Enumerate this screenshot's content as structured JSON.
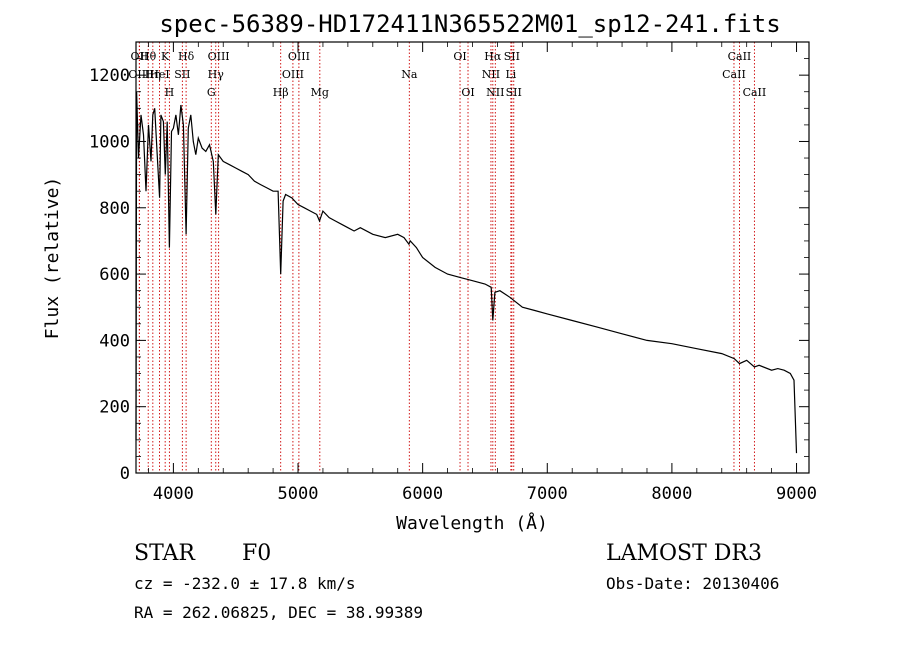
{
  "chart_data": {
    "type": "line",
    "title": "spec-56389-HD172411N365522M01_sp12-241.fits",
    "xlabel": "Wavelength (Å)",
    "ylabel": "Flux (relative)",
    "xlim": [
      3700,
      9100
    ],
    "ylim": [
      0,
      1300
    ],
    "x_ticks": [
      4000,
      5000,
      6000,
      7000,
      8000,
      9000
    ],
    "y_ticks": [
      0,
      200,
      400,
      600,
      800,
      1000,
      1200
    ],
    "series": [
      {
        "name": "flux",
        "x": [
          3700,
          3705,
          3720,
          3740,
          3760,
          3780,
          3800,
          3820,
          3835,
          3850,
          3870,
          3889,
          3900,
          3920,
          3935,
          3950,
          3968,
          3985,
          4000,
          4020,
          4040,
          4060,
          4080,
          4102,
          4120,
          4140,
          4160,
          4180,
          4200,
          4230,
          4260,
          4290,
          4320,
          4340,
          4360,
          4400,
          4450,
          4500,
          4550,
          4600,
          4650,
          4700,
          4750,
          4800,
          4840,
          4861,
          4880,
          4900,
          4950,
          5000,
          5050,
          5100,
          5150,
          5172,
          5200,
          5250,
          5300,
          5350,
          5400,
          5450,
          5500,
          5600,
          5700,
          5800,
          5850,
          5890,
          5900,
          5950,
          6000,
          6100,
          6200,
          6300,
          6400,
          6500,
          6550,
          6563,
          6580,
          6620,
          6700,
          6800,
          6900,
          7000,
          7200,
          7400,
          7600,
          7800,
          8000,
          8200,
          8400,
          8500,
          8542,
          8600,
          8662,
          8700,
          8800,
          8850,
          8900,
          8950,
          8980,
          9000
        ],
        "y": [
          100,
          1150,
          950,
          1080,
          1020,
          850,
          1050,
          940,
          1080,
          1100,
          960,
          830,
          1080,
          1060,
          900,
          1060,
          680,
          1030,
          1040,
          1080,
          1020,
          1110,
          1050,
          720,
          1040,
          1080,
          1000,
          960,
          1010,
          980,
          970,
          990,
          940,
          780,
          960,
          940,
          930,
          920,
          910,
          900,
          880,
          870,
          860,
          850,
          850,
          600,
          820,
          840,
          830,
          810,
          800,
          790,
          780,
          760,
          790,
          770,
          760,
          750,
          740,
          730,
          740,
          720,
          710,
          720,
          710,
          690,
          700,
          680,
          650,
          620,
          600,
          590,
          580,
          570,
          560,
          460,
          545,
          550,
          530,
          500,
          490,
          480,
          460,
          440,
          420,
          400,
          390,
          375,
          360,
          345,
          330,
          340,
          320,
          325,
          310,
          315,
          310,
          300,
          280,
          60
        ]
      }
    ],
    "spectral_lines": [
      {
        "name": "Hθ",
        "wavelength": 3798
      },
      {
        "name": "K",
        "wavelength": 3934
      },
      {
        "name": "Hδ",
        "wavelength": 4102
      },
      {
        "name": "OIII",
        "wavelength": 4363
      },
      {
        "name": "OIII",
        "wavelength": 5007
      },
      {
        "name": "OI",
        "wavelength": 6300
      },
      {
        "name": "Hα",
        "wavelength": 6563
      },
      {
        "name": "SII",
        "wavelength": 6716
      },
      {
        "name": "CaII",
        "wavelength": 8542
      },
      {
        "name": "OII",
        "wavelength": 3727
      },
      {
        "name": "HeI",
        "wavelength": 3889
      },
      {
        "name": "SII",
        "wavelength": 4072
      },
      {
        "name": "Hγ",
        "wavelength": 4340
      },
      {
        "name": "OIII",
        "wavelength": 4959
      },
      {
        "name": "Na",
        "wavelength": 5893
      },
      {
        "name": "NII",
        "wavelength": 6548
      },
      {
        "name": "Li",
        "wavelength": 6708
      },
      {
        "name": "CaII",
        "wavelength": 8498
      },
      {
        "name": "OIII",
        "wavelength": 3727
      },
      {
        "name": "Hη",
        "wavelength": 3835
      },
      {
        "name": "H",
        "wavelength": 3968
      },
      {
        "name": "G",
        "wavelength": 4304
      },
      {
        "name": "Hβ",
        "wavelength": 4861
      },
      {
        "name": "Mg",
        "wavelength": 5175
      },
      {
        "name": "OI",
        "wavelength": 6364
      },
      {
        "name": "NII",
        "wavelength": 6583
      },
      {
        "name": "SII",
        "wavelength": 6731
      },
      {
        "name": "CaII",
        "wavelength": 8662
      }
    ],
    "line_color": "#000000",
    "marker_color": "#cc0000"
  },
  "info": {
    "object_class": "STAR",
    "subclass": "F0",
    "survey": "LAMOST DR3",
    "cz": "cz = -232.0 ± 17.8 km/s",
    "obs_date": "Obs-Date: 20130406",
    "coords": "RA = 262.06825, DEC =  38.99389"
  }
}
